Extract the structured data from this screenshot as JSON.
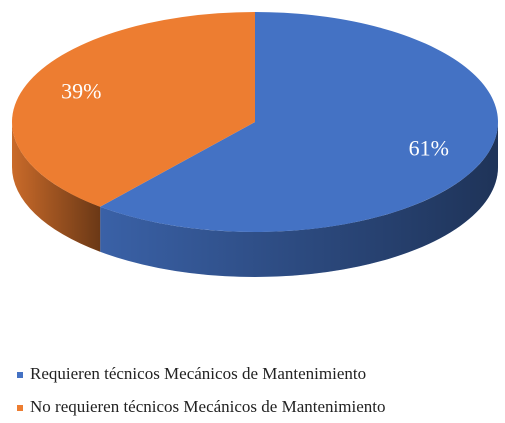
{
  "chart_data": {
    "type": "pie",
    "categories": [
      "Requieren técnicos Mecánicos de Mantenimiento",
      "No requieren técnicos Mecánicos de Mantenimiento"
    ],
    "values": [
      61,
      39
    ],
    "value_labels": [
      "61%",
      "39%"
    ],
    "colors": [
      "#4472c4",
      "#ed7d31"
    ],
    "legend": "bottom"
  }
}
